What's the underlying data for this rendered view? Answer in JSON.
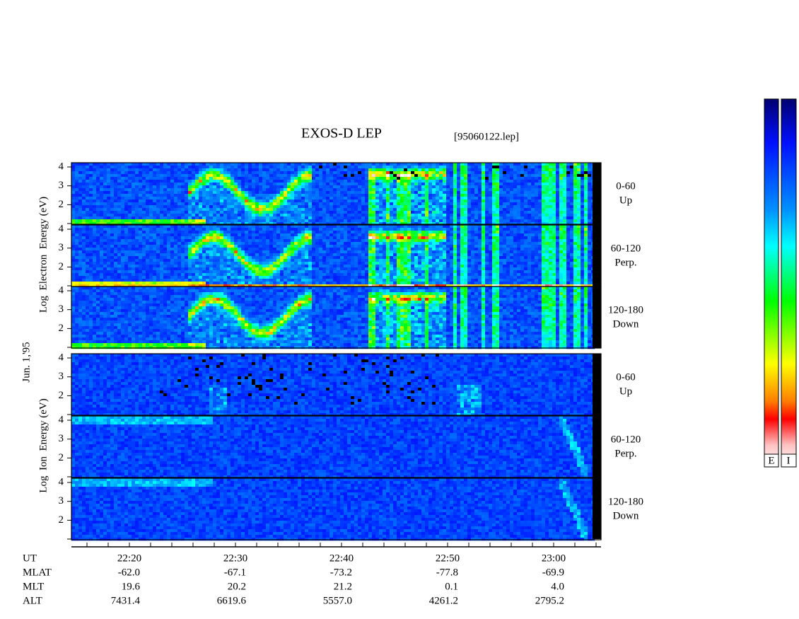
{
  "header": {
    "title": "EXOS-D LEP",
    "file": "[95060122.lep]",
    "date": "Jun. 1,'95"
  },
  "electron": {
    "axis_label": "Log  Electron  Energy (eV)",
    "yticks": [
      "4",
      "3",
      "2"
    ],
    "panels": [
      {
        "angle": "0-60",
        "direction": "Up"
      },
      {
        "angle": "60-120",
        "direction": "Perp."
      },
      {
        "angle": "120-180",
        "direction": "Down"
      }
    ]
  },
  "ion": {
    "axis_label": "Log  Ion  Energy (eV)",
    "yticks": [
      "4",
      "3",
      "2"
    ],
    "panels": [
      {
        "angle": "0-60",
        "direction": "Up"
      },
      {
        "angle": "60-120",
        "direction": "Perp."
      },
      {
        "angle": "120-180",
        "direction": "Down"
      }
    ]
  },
  "footer": {
    "labels": [
      "UT",
      "MLAT",
      "MLT",
      "ALT"
    ],
    "columns": [
      [
        "22:20",
        "-62.0",
        "19.6",
        "7431.4"
      ],
      [
        "22:30",
        "-67.1",
        "20.2",
        "6619.6"
      ],
      [
        "22:40",
        "-73.2",
        "21.2",
        "5557.0"
      ],
      [
        "22:50",
        "-77.8",
        "0.1",
        "4261.2"
      ],
      [
        "23:00",
        "-69.9",
        "4.0",
        "2795.2"
      ]
    ]
  },
  "colorbars": [
    "E",
    "I"
  ]
}
